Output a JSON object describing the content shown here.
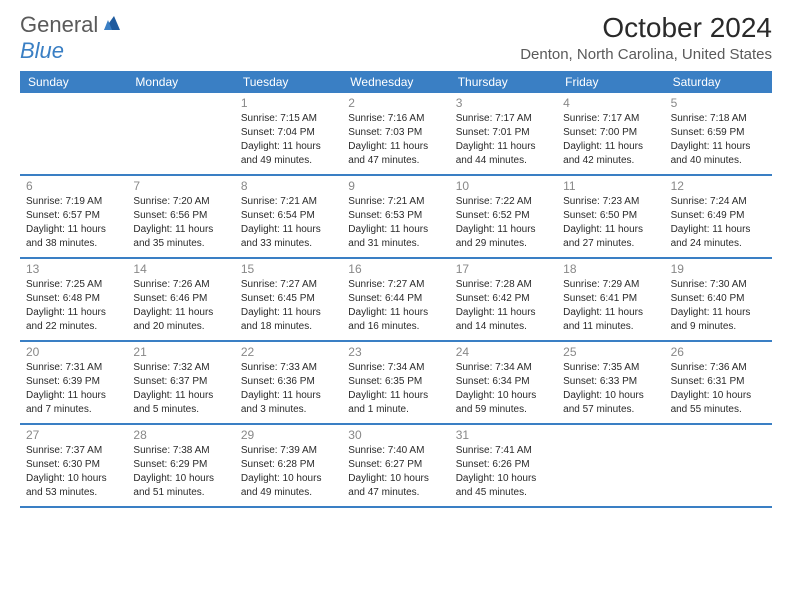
{
  "logo": {
    "text_general": "General",
    "text_blue": "Blue"
  },
  "title": "October 2024",
  "location": "Denton, North Carolina, United States",
  "day_names": [
    "Sunday",
    "Monday",
    "Tuesday",
    "Wednesday",
    "Thursday",
    "Friday",
    "Saturday"
  ],
  "colors": {
    "header_bg": "#3a7fc4",
    "header_text": "#ffffff",
    "border": "#3a7fc4",
    "day_number": "#888888",
    "body_text": "#2a2a2a",
    "location_text": "#5a5a5a"
  },
  "weeks": [
    {
      "days": [
        {
          "num": "",
          "sunrise": "",
          "sunset": "",
          "daylight": ""
        },
        {
          "num": "",
          "sunrise": "",
          "sunset": "",
          "daylight": ""
        },
        {
          "num": "1",
          "sunrise": "Sunrise: 7:15 AM",
          "sunset": "Sunset: 7:04 PM",
          "daylight": "Daylight: 11 hours and 49 minutes."
        },
        {
          "num": "2",
          "sunrise": "Sunrise: 7:16 AM",
          "sunset": "Sunset: 7:03 PM",
          "daylight": "Daylight: 11 hours and 47 minutes."
        },
        {
          "num": "3",
          "sunrise": "Sunrise: 7:17 AM",
          "sunset": "Sunset: 7:01 PM",
          "daylight": "Daylight: 11 hours and 44 minutes."
        },
        {
          "num": "4",
          "sunrise": "Sunrise: 7:17 AM",
          "sunset": "Sunset: 7:00 PM",
          "daylight": "Daylight: 11 hours and 42 minutes."
        },
        {
          "num": "5",
          "sunrise": "Sunrise: 7:18 AM",
          "sunset": "Sunset: 6:59 PM",
          "daylight": "Daylight: 11 hours and 40 minutes."
        }
      ]
    },
    {
      "days": [
        {
          "num": "6",
          "sunrise": "Sunrise: 7:19 AM",
          "sunset": "Sunset: 6:57 PM",
          "daylight": "Daylight: 11 hours and 38 minutes."
        },
        {
          "num": "7",
          "sunrise": "Sunrise: 7:20 AM",
          "sunset": "Sunset: 6:56 PM",
          "daylight": "Daylight: 11 hours and 35 minutes."
        },
        {
          "num": "8",
          "sunrise": "Sunrise: 7:21 AM",
          "sunset": "Sunset: 6:54 PM",
          "daylight": "Daylight: 11 hours and 33 minutes."
        },
        {
          "num": "9",
          "sunrise": "Sunrise: 7:21 AM",
          "sunset": "Sunset: 6:53 PM",
          "daylight": "Daylight: 11 hours and 31 minutes."
        },
        {
          "num": "10",
          "sunrise": "Sunrise: 7:22 AM",
          "sunset": "Sunset: 6:52 PM",
          "daylight": "Daylight: 11 hours and 29 minutes."
        },
        {
          "num": "11",
          "sunrise": "Sunrise: 7:23 AM",
          "sunset": "Sunset: 6:50 PM",
          "daylight": "Daylight: 11 hours and 27 minutes."
        },
        {
          "num": "12",
          "sunrise": "Sunrise: 7:24 AM",
          "sunset": "Sunset: 6:49 PM",
          "daylight": "Daylight: 11 hours and 24 minutes."
        }
      ]
    },
    {
      "days": [
        {
          "num": "13",
          "sunrise": "Sunrise: 7:25 AM",
          "sunset": "Sunset: 6:48 PM",
          "daylight": "Daylight: 11 hours and 22 minutes."
        },
        {
          "num": "14",
          "sunrise": "Sunrise: 7:26 AM",
          "sunset": "Sunset: 6:46 PM",
          "daylight": "Daylight: 11 hours and 20 minutes."
        },
        {
          "num": "15",
          "sunrise": "Sunrise: 7:27 AM",
          "sunset": "Sunset: 6:45 PM",
          "daylight": "Daylight: 11 hours and 18 minutes."
        },
        {
          "num": "16",
          "sunrise": "Sunrise: 7:27 AM",
          "sunset": "Sunset: 6:44 PM",
          "daylight": "Daylight: 11 hours and 16 minutes."
        },
        {
          "num": "17",
          "sunrise": "Sunrise: 7:28 AM",
          "sunset": "Sunset: 6:42 PM",
          "daylight": "Daylight: 11 hours and 14 minutes."
        },
        {
          "num": "18",
          "sunrise": "Sunrise: 7:29 AM",
          "sunset": "Sunset: 6:41 PM",
          "daylight": "Daylight: 11 hours and 11 minutes."
        },
        {
          "num": "19",
          "sunrise": "Sunrise: 7:30 AM",
          "sunset": "Sunset: 6:40 PM",
          "daylight": "Daylight: 11 hours and 9 minutes."
        }
      ]
    },
    {
      "days": [
        {
          "num": "20",
          "sunrise": "Sunrise: 7:31 AM",
          "sunset": "Sunset: 6:39 PM",
          "daylight": "Daylight: 11 hours and 7 minutes."
        },
        {
          "num": "21",
          "sunrise": "Sunrise: 7:32 AM",
          "sunset": "Sunset: 6:37 PM",
          "daylight": "Daylight: 11 hours and 5 minutes."
        },
        {
          "num": "22",
          "sunrise": "Sunrise: 7:33 AM",
          "sunset": "Sunset: 6:36 PM",
          "daylight": "Daylight: 11 hours and 3 minutes."
        },
        {
          "num": "23",
          "sunrise": "Sunrise: 7:34 AM",
          "sunset": "Sunset: 6:35 PM",
          "daylight": "Daylight: 11 hours and 1 minute."
        },
        {
          "num": "24",
          "sunrise": "Sunrise: 7:34 AM",
          "sunset": "Sunset: 6:34 PM",
          "daylight": "Daylight: 10 hours and 59 minutes."
        },
        {
          "num": "25",
          "sunrise": "Sunrise: 7:35 AM",
          "sunset": "Sunset: 6:33 PM",
          "daylight": "Daylight: 10 hours and 57 minutes."
        },
        {
          "num": "26",
          "sunrise": "Sunrise: 7:36 AM",
          "sunset": "Sunset: 6:31 PM",
          "daylight": "Daylight: 10 hours and 55 minutes."
        }
      ]
    },
    {
      "days": [
        {
          "num": "27",
          "sunrise": "Sunrise: 7:37 AM",
          "sunset": "Sunset: 6:30 PM",
          "daylight": "Daylight: 10 hours and 53 minutes."
        },
        {
          "num": "28",
          "sunrise": "Sunrise: 7:38 AM",
          "sunset": "Sunset: 6:29 PM",
          "daylight": "Daylight: 10 hours and 51 minutes."
        },
        {
          "num": "29",
          "sunrise": "Sunrise: 7:39 AM",
          "sunset": "Sunset: 6:28 PM",
          "daylight": "Daylight: 10 hours and 49 minutes."
        },
        {
          "num": "30",
          "sunrise": "Sunrise: 7:40 AM",
          "sunset": "Sunset: 6:27 PM",
          "daylight": "Daylight: 10 hours and 47 minutes."
        },
        {
          "num": "31",
          "sunrise": "Sunrise: 7:41 AM",
          "sunset": "Sunset: 6:26 PM",
          "daylight": "Daylight: 10 hours and 45 minutes."
        },
        {
          "num": "",
          "sunrise": "",
          "sunset": "",
          "daylight": ""
        },
        {
          "num": "",
          "sunrise": "",
          "sunset": "",
          "daylight": ""
        }
      ]
    }
  ]
}
